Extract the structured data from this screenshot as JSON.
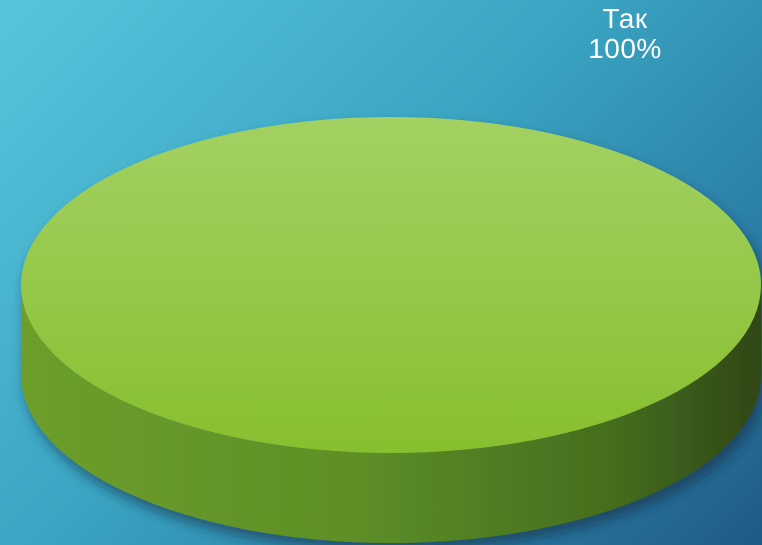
{
  "chart_data": {
    "type": "pie",
    "three_d": true,
    "categories": [
      "Так"
    ],
    "values": [
      100
    ],
    "data_labels": [
      {
        "category": "Так",
        "percent": "100%"
      }
    ],
    "colors": {
      "slice_top": "#97c840",
      "slice_side": "#5a8a26",
      "slice_side_dark": "#34501a",
      "label_text": "#ffffff"
    },
    "legend": "none"
  }
}
